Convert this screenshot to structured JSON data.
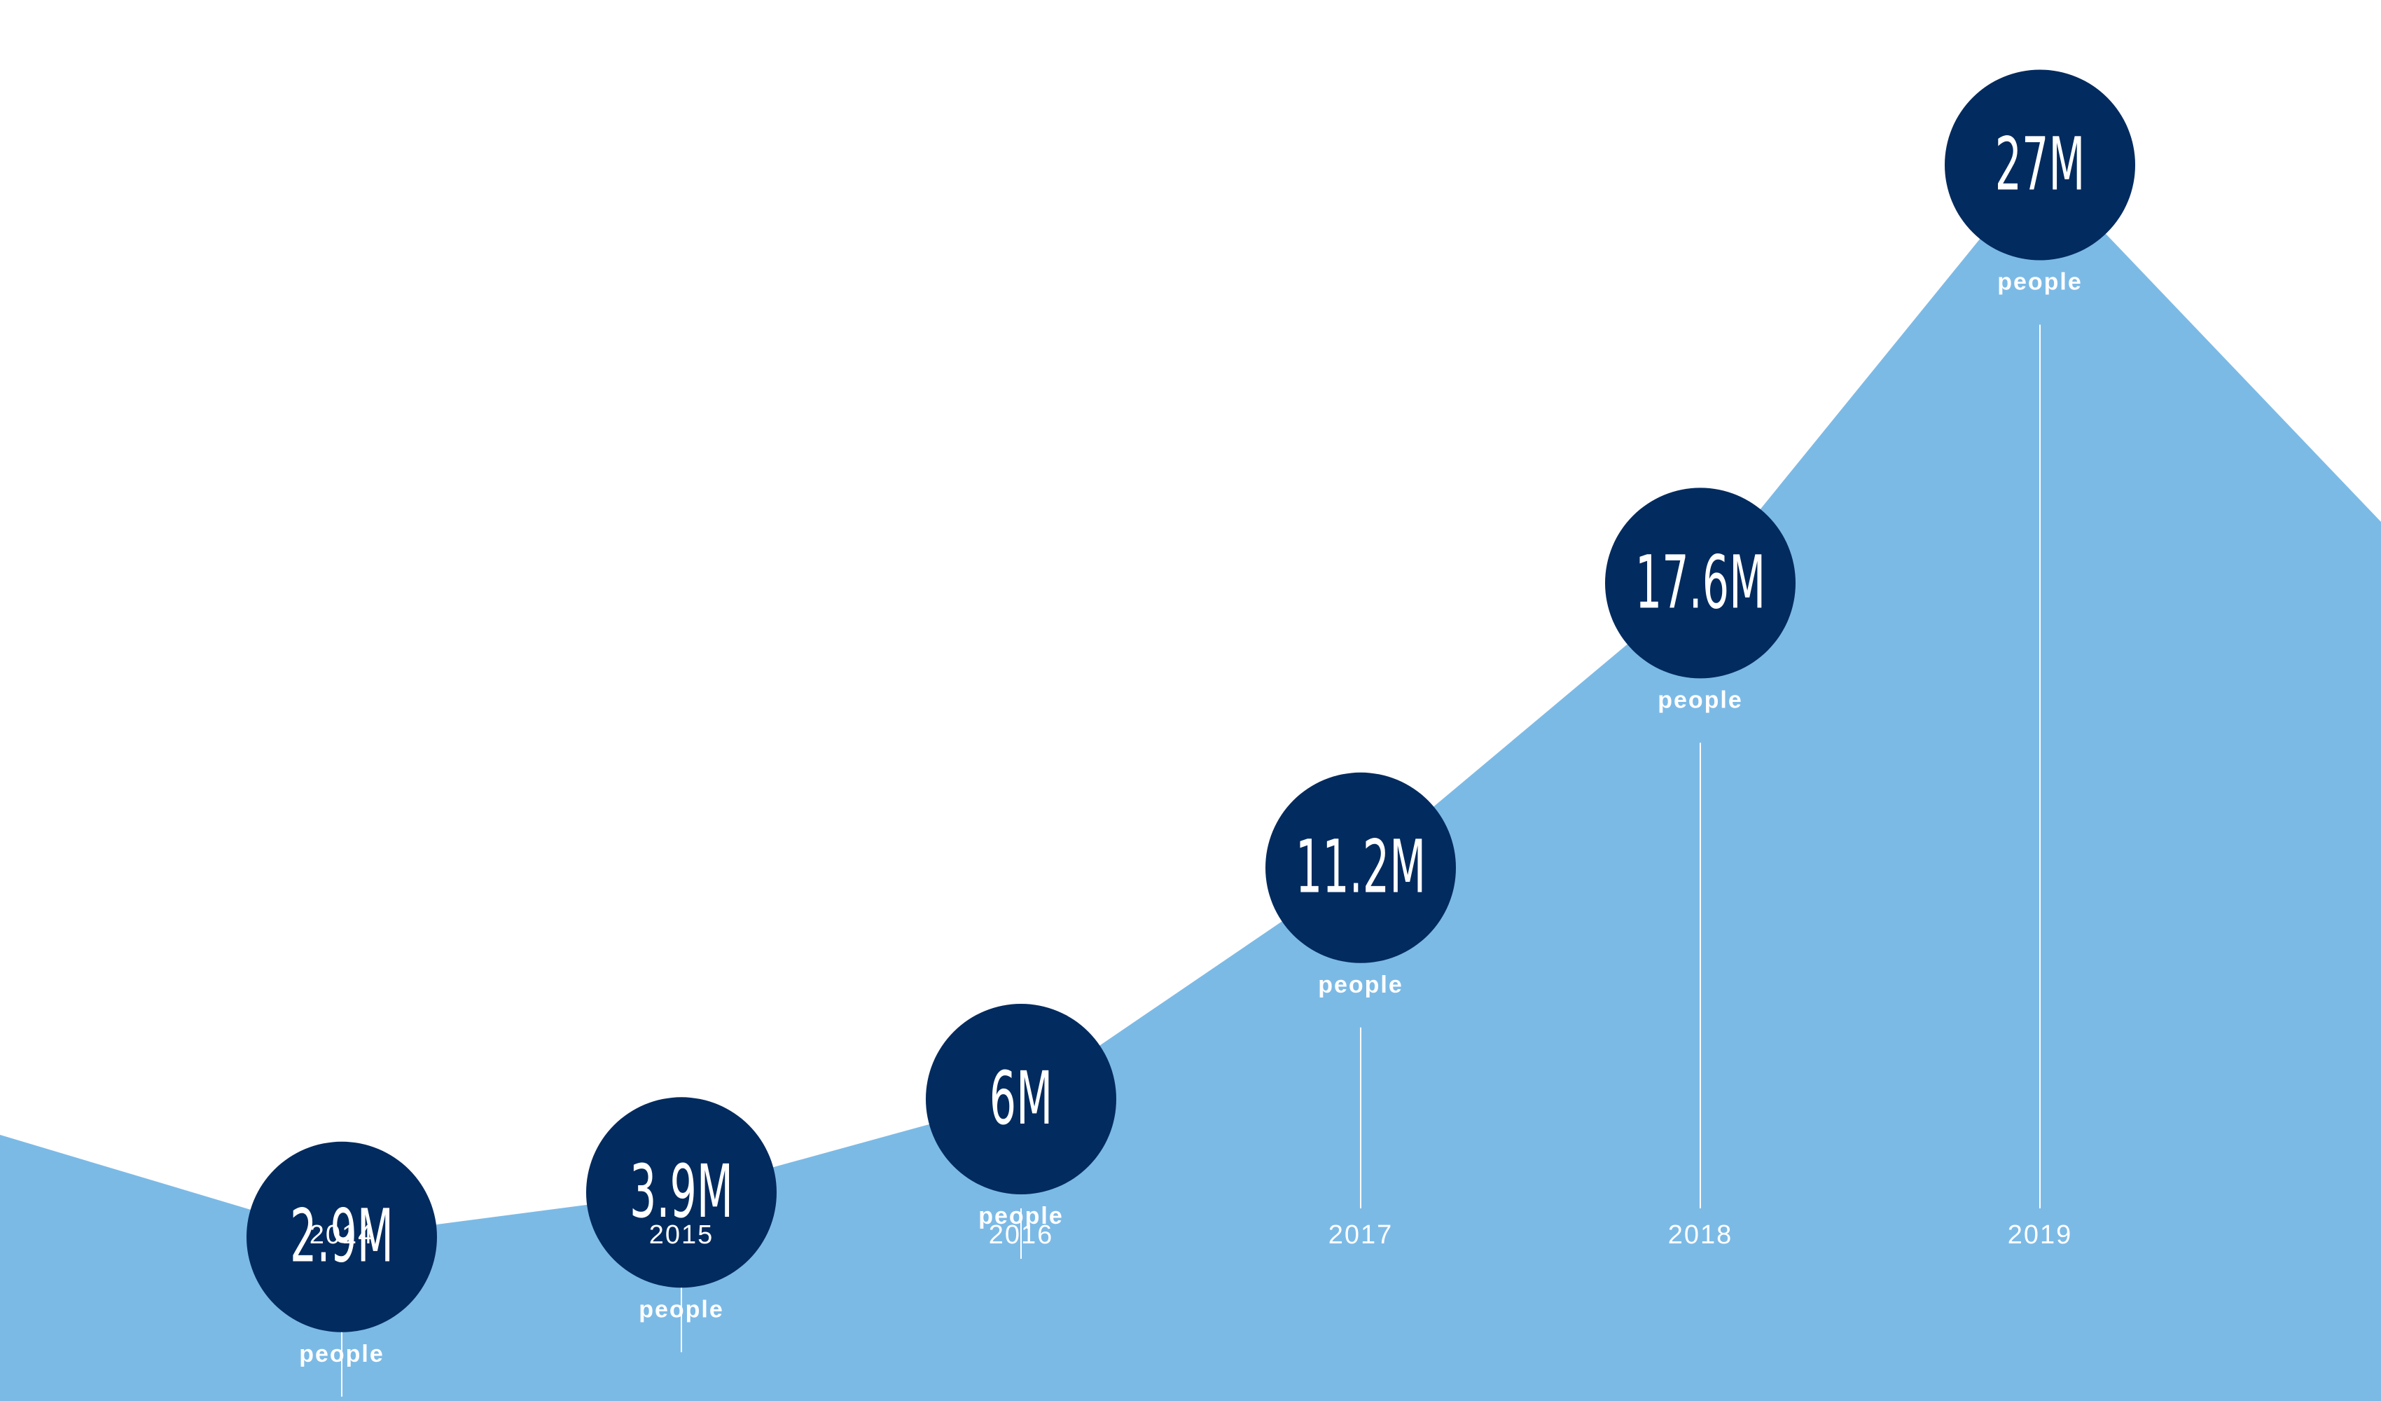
{
  "chart_data": {
    "type": "area",
    "categories": [
      "2014",
      "2015",
      "2016",
      "2017",
      "2018",
      "2019"
    ],
    "series": [
      {
        "values": [
          2.9,
          3.9,
          6,
          11.2,
          17.6,
          27
        ],
        "labels": [
          "2.9M",
          "3.9M",
          "6M",
          "11.2M",
          "17.6M",
          "27M"
        ]
      }
    ],
    "unit_label": "people",
    "colors": {
      "background": "#ffffff",
      "area": "#7cbae6",
      "marker": "#022b5f",
      "text": "#ffffff"
    },
    "grid": false,
    "legend": "none"
  }
}
